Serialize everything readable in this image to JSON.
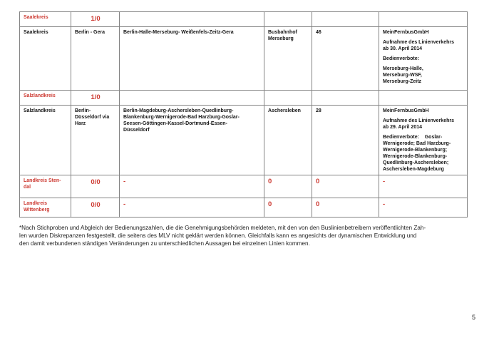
{
  "page": {
    "number": "5"
  },
  "colors": {
    "accent_red": "#cd3b33",
    "table_border": "#848484"
  },
  "table": {
    "rows": [
      {
        "cells": [
          "Saalekreis",
          "1/0",
          "",
          "",
          "",
          ""
        ]
      },
      {
        "cells": [
          "Saalekreis",
          "Berlin - Gera",
          "Berlin-Halle-Merseburg- Weißenfels-Zeitz-Gera",
          "Busbahnhof\nMerseburg",
          "46",
          [
            "MeinFernbusGmbH",
            "Aufnahme des Linienverkehrs\nab 30. April 2014",
            "Bedienverbote:",
            "Merseburg-Halle,\nMerseburg-WSF,\nMerseburg-Zeitz"
          ]
        ]
      },
      {
        "cells": [
          "Salzlandkreis",
          "1/0",
          "",
          "",
          "",
          ""
        ]
      },
      {
        "cells": [
          "Salzlandkreis",
          "Berlin-\nDüsseldorf via\nHarz",
          "Berlin-Magdeburg-Aschersleben-Quedlinburg-\nBlankenburg-Wernigerode-Bad Harzburg-Goslar-\nSeesen-Göttingen-Kassel-Dortmund-Essen-\nDüsseldorf",
          "Aschersleben",
          "28",
          [
            "MeinFernbusGmbH",
            "Aufnahme des Linienverkehrs\nab 29. April 2014",
            "Bedienverbote:    Goslar-\nWernigerode; Bad Harzburg-\nWernigerode-Blankenburg;\nWernigerode-Blankenburg-\nQuedlinburg-Aschersleben;\nAschersleben-Magdeburg"
          ]
        ]
      },
      {
        "cells": [
          "Landkreis Sten-\ndal",
          "0/0",
          "-",
          "0",
          "0",
          "-"
        ]
      },
      {
        "cells": [
          "Landkreis\nWittenberg",
          "0/0",
          "-",
          "0",
          "0",
          "-"
        ]
      }
    ]
  },
  "footnote": {
    "lines": [
      "*Nach Stichproben und Abgleich der Bedienungszahlen, die die Genehmigungsbehörden meldeten, mit den von den Buslinienbetreibern veröffentlichten Zah-",
      "len wurden Diskrepanzen festgestellt, die seitens des MLV nicht geklärt werden können. Gleichfalls kann es angesichts der dynamischen Entwicklung und",
      "den damit verbundenen ständigen Veränderungen zu unterschiedlichen Aussagen bei einzelnen Linien kommen."
    ]
  }
}
